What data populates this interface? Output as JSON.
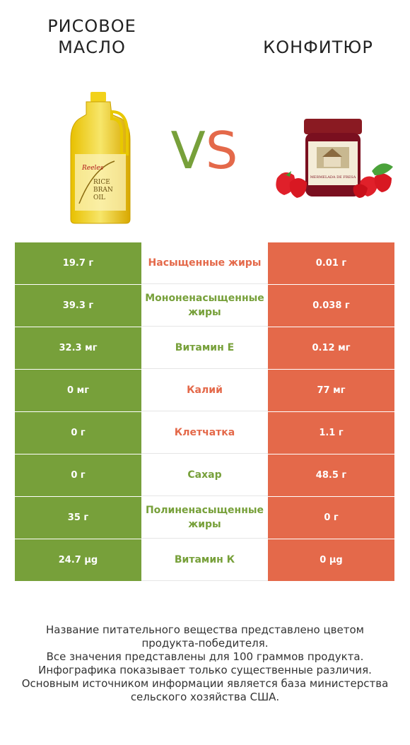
{
  "left_product": {
    "name": "РИСОВОЕ МАСЛО",
    "color": "#77a03a",
    "label_text": [
      "RICE",
      "BRAN",
      "OIL"
    ]
  },
  "right_product": {
    "name": "КОНФИТЮР",
    "color": "#e4694a",
    "label_text": "MERMELADA DE FRESA"
  },
  "vs": {
    "v": "V",
    "s": "S"
  },
  "rows": [
    {
      "left": "19.7 г",
      "nutrient": "Насыщенные жиры",
      "right": "0.01 г",
      "winner": "right"
    },
    {
      "left": "39.3 г",
      "nutrient": "Мононенасыщенные жиры",
      "right": "0.038 г",
      "winner": "left"
    },
    {
      "left": "32.3 мг",
      "nutrient": "Витамин Е",
      "right": "0.12 мг",
      "winner": "left"
    },
    {
      "left": "0 мг",
      "nutrient": "Калий",
      "right": "77 мг",
      "winner": "right"
    },
    {
      "left": "0 г",
      "nutrient": "Клетчатка",
      "right": "1.1 г",
      "winner": "right"
    },
    {
      "left": "0 г",
      "nutrient": "Сахар",
      "right": "48.5 г",
      "winner": "left"
    },
    {
      "left": "35 г",
      "nutrient": "Полиненасыщенные жиры",
      "right": "0 г",
      "winner": "left"
    },
    {
      "left": "24.7 µg",
      "nutrient": "Витамин К",
      "right": "0 µg",
      "winner": "left"
    }
  ],
  "footer": [
    "Название питательного вещества представлено цветом",
    "продукта-победителя.",
    "Все значения представлены для 100 граммов продукта.",
    "Инфографика показывает только существенные различия.",
    "Основным источником информации является база министерства",
    "сельского хозяйства США."
  ]
}
